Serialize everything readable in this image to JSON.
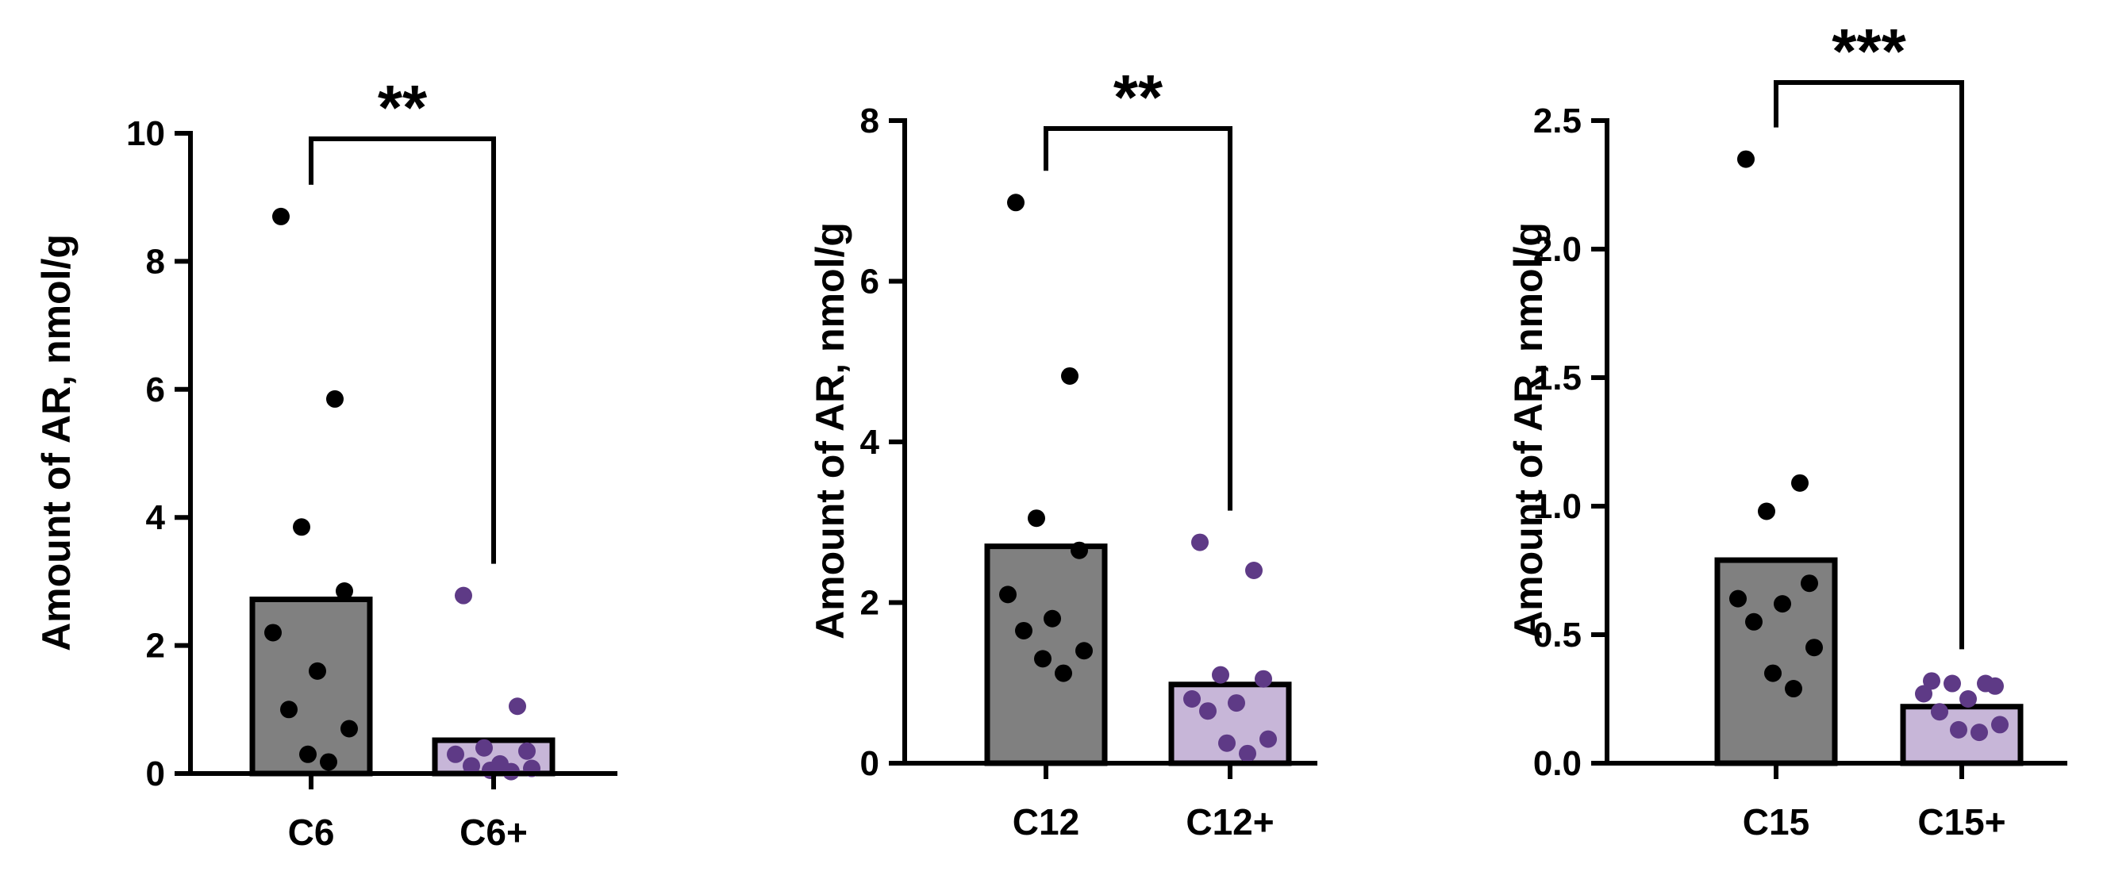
{
  "colors": {
    "control_bar": "#808080",
    "treated_bar": "#c7b6d8",
    "control_dot": "#000000",
    "treated_dot": "#5e3a86",
    "axis": "#000000"
  },
  "chart_data": [
    {
      "type": "bar",
      "categories": [
        "C6",
        "C6+"
      ],
      "values": [
        2.72,
        0.52
      ],
      "points": [
        [
          8.7,
          5.85,
          3.85,
          2.85,
          2.2,
          1.6,
          1.0,
          0.7,
          0.3,
          0.18
        ],
        [
          2.78,
          1.05,
          0.4,
          0.35,
          0.3,
          0.15,
          0.12,
          0.08,
          0.05,
          0.03
        ]
      ],
      "xlabel": "",
      "ylabel": "Amount of AR, nmol/g",
      "ylim": [
        0,
        10
      ],
      "yticks": [
        "0",
        "2",
        "4",
        "6",
        "8",
        "10"
      ],
      "significance": "**",
      "grid": false
    },
    {
      "type": "bar",
      "categories": [
        "C12",
        "C12+"
      ],
      "values": [
        2.7,
        0.98
      ],
      "points": [
        [
          6.98,
          4.82,
          3.05,
          2.65,
          2.1,
          1.8,
          1.65,
          1.4,
          1.3,
          1.12
        ],
        [
          2.75,
          2.4,
          1.1,
          1.05,
          0.8,
          0.75,
          0.65,
          0.3,
          0.25,
          0.12
        ]
      ],
      "xlabel": "",
      "ylabel": "Amount of AR, nmol/g",
      "ylim": [
        0,
        8
      ],
      "yticks": [
        "0",
        "2",
        "4",
        "6",
        "8"
      ],
      "significance": "**",
      "grid": false
    },
    {
      "type": "bar",
      "categories": [
        "C15",
        "C15+"
      ],
      "values": [
        0.79,
        0.22
      ],
      "points": [
        [
          2.35,
          1.09,
          0.98,
          0.7,
          0.64,
          0.62,
          0.55,
          0.45,
          0.35,
          0.29
        ],
        [
          0.32,
          0.31,
          0.31,
          0.3,
          0.27,
          0.25,
          0.2,
          0.15,
          0.13,
          0.12
        ]
      ],
      "xlabel": "",
      "ylabel": "Amount of AR, nmol/g",
      "ylim": [
        0,
        2.5
      ],
      "yticks": [
        "0.0",
        "0.5",
        "1.0",
        "1.5",
        "2.0",
        "2.5"
      ],
      "significance": "***",
      "grid": false
    }
  ]
}
